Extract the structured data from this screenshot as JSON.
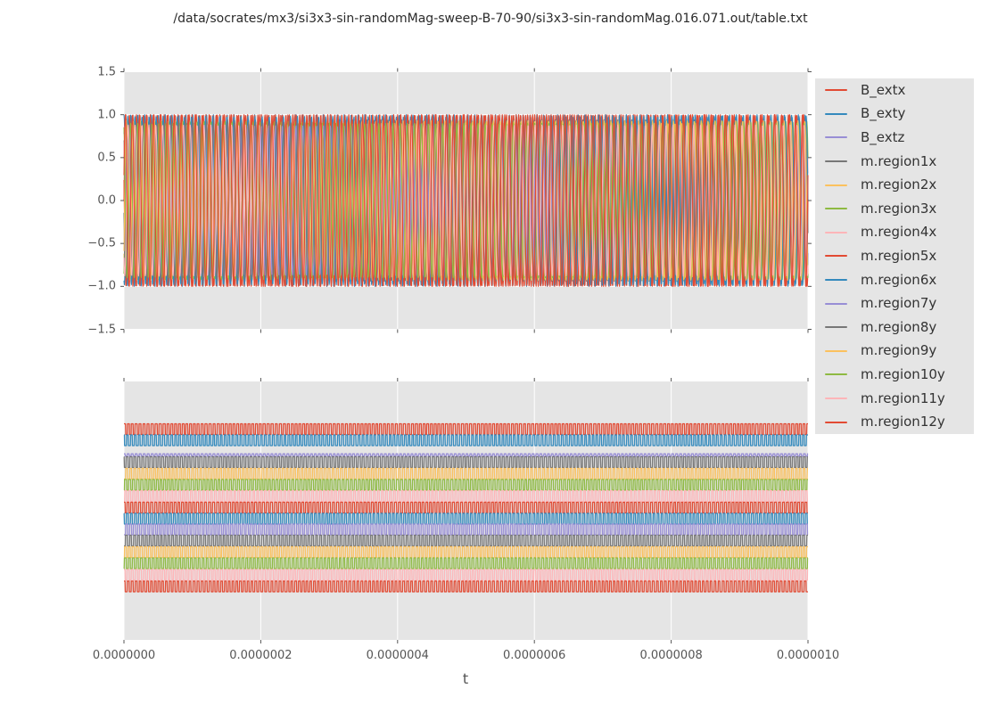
{
  "figure": {
    "title": "/data/socrates/mx3/si3x3-sin-randomMag-sweep-B-70-90/si3x3-sin-randomMag.016.071.out/table.txt",
    "xlabel": "t",
    "background": "#ffffff",
    "axes_background": "#e5e5e5",
    "grid_color": "#ffffff",
    "tick_color": "#555555",
    "tick_label_color": "#555555",
    "legend_text_color": "#333333"
  },
  "axis": {
    "x_tick_labels": [
      "0.0000000",
      "0.0000002",
      "0.0000004",
      "0.0000006",
      "0.0000008",
      "0.0000010"
    ],
    "top_y_tick_labels": [
      "1.5",
      "1.0",
      "0.5",
      "0.0",
      "−0.5",
      "−1.0",
      "−1.5"
    ]
  },
  "chart_data": [
    {
      "type": "line",
      "subplot": "top",
      "xlabel": "t",
      "xlim": [
        0,
        1e-06
      ],
      "ylim": [
        -1.5,
        1.5
      ],
      "x_ticks": [
        0,
        2e-07,
        4e-07,
        6e-07,
        8e-07,
        1e-06
      ],
      "y_ticks": [
        1.5,
        1.0,
        0.5,
        0.0,
        -0.5,
        -1.0,
        -1.5
      ],
      "grid": true,
      "legend_position": "right",
      "description": "15 overlapping high-frequency sinusoids oscillating between -1 and +1 over 1 microsecond (~98 cycles), forming a dense red/blue striped band with multicolor peak fringes",
      "series": [
        {
          "name": "B_extx",
          "color": "#E24A33",
          "waveform": "sine",
          "amplitude": 1.0,
          "freq_cycles": 97.0,
          "phase": 0.0
        },
        {
          "name": "B_exty",
          "color": "#348ABD",
          "waveform": "sine",
          "amplitude": 1.0,
          "freq_cycles": 99.4,
          "phase": 1.57
        },
        {
          "name": "B_extz",
          "color": "#988ED5",
          "waveform": "sine",
          "amplitude": 0.72,
          "freq_cycles": 96.3,
          "phase": 0.8
        },
        {
          "name": "m.region1x",
          "color": "#777777",
          "waveform": "sine",
          "amplitude": 0.94,
          "freq_cycles": 98.2,
          "phase": 2.3
        },
        {
          "name": "m.region2x",
          "color": "#FBC15E",
          "waveform": "sine",
          "amplitude": 0.9,
          "freq_cycles": 100.1,
          "phase": 3.9
        },
        {
          "name": "m.region3x",
          "color": "#8EBA42",
          "waveform": "sine",
          "amplitude": 0.92,
          "freq_cycles": 97.6,
          "phase": 5.1
        },
        {
          "name": "m.region4x",
          "color": "#FFB5B8",
          "waveform": "sine",
          "amplitude": 0.89,
          "freq_cycles": 99.0,
          "phase": 0.6
        },
        {
          "name": "m.region5x",
          "color": "#E24A33",
          "waveform": "sine",
          "amplitude": 1.0,
          "freq_cycles": 98.4,
          "phase": 2.9
        },
        {
          "name": "m.region6x",
          "color": "#348ABD",
          "waveform": "sine",
          "amplitude": 0.98,
          "freq_cycles": 96.8,
          "phase": 4.4
        },
        {
          "name": "m.region7y",
          "color": "#988ED5",
          "waveform": "sine",
          "amplitude": 0.87,
          "freq_cycles": 99.7,
          "phase": 1.1
        },
        {
          "name": "m.region8y",
          "color": "#777777",
          "waveform": "sine",
          "amplitude": 0.91,
          "freq_cycles": 97.2,
          "phase": 3.3
        },
        {
          "name": "m.region9y",
          "color": "#FBC15E",
          "waveform": "sine",
          "amplitude": 0.93,
          "freq_cycles": 98.8,
          "phase": 5.6
        },
        {
          "name": "m.region10y",
          "color": "#8EBA42",
          "waveform": "sine",
          "amplitude": 0.9,
          "freq_cycles": 96.5,
          "phase": 1.9
        },
        {
          "name": "m.region11y",
          "color": "#FFB5B8",
          "waveform": "sine",
          "amplitude": 0.88,
          "freq_cycles": 99.2,
          "phase": 4.0
        },
        {
          "name": "m.region12y",
          "color": "#E24A33",
          "waveform": "sine",
          "amplitude": 1.0,
          "freq_cycles": 98.0,
          "phase": 0.3
        }
      ]
    },
    {
      "type": "line",
      "subplot": "bottom",
      "xlabel": "t",
      "xlim": [
        0,
        1e-06
      ],
      "ylim": [
        0,
        1
      ],
      "x_ticks": [
        0,
        2e-07,
        4e-07,
        6e-07,
        8e-07,
        1e-06
      ],
      "y_ticks": [],
      "grid": true,
      "description": "15 small-amplitude square-wave traces (~176 cycles) stacked at staggered vertical offsets; offsets/amplitudes given as fraction of axes height, third trace (B_extz) nearly flat",
      "series": [
        {
          "name": "B_extx",
          "color": "#E24A33",
          "waveform": "square",
          "offset": 0.8155,
          "amplitude": 0.0207,
          "freq_cycles": 176.3,
          "phase": 0.0,
          "mod_freq": 11,
          "mod_amp": 0.8,
          "mod_phase": 0.3,
          "duty": 0.1
        },
        {
          "name": "B_exty",
          "color": "#348ABD",
          "waveform": "square",
          "offset": 0.7724,
          "amplitude": 0.0207,
          "freq_cycles": 175.1,
          "phase": 1.2,
          "mod_freq": 7,
          "mod_amp": 1.1,
          "mod_phase": 1.1,
          "duty": -0.15
        },
        {
          "name": "B_extz",
          "color": "#988ED5",
          "waveform": "square",
          "offset": 0.7155,
          "amplitude": 0.0045,
          "freq_cycles": 176.0,
          "phase": 0.5,
          "mod_freq": 9,
          "mod_amp": 0.6,
          "mod_phase": 2.0,
          "duty": 0.0
        },
        {
          "name": "m.region1x",
          "color": "#777777",
          "waveform": "square",
          "offset": 0.6879,
          "amplitude": 0.0207,
          "freq_cycles": 176.8,
          "phase": 2.1,
          "mod_freq": 12,
          "mod_amp": 0.7,
          "mod_phase": 0.8,
          "duty": 0.12
        },
        {
          "name": "m.region2x",
          "color": "#FBC15E",
          "waveform": "square",
          "offset": 0.6431,
          "amplitude": 0.0207,
          "freq_cycles": 175.6,
          "phase": 3.3,
          "mod_freq": 10,
          "mod_amp": 0.9,
          "mod_phase": 2.6,
          "duty": -0.1
        },
        {
          "name": "m.region3x",
          "color": "#8EBA42",
          "waveform": "square",
          "offset": 0.6,
          "amplitude": 0.0207,
          "freq_cycles": 176.4,
          "phase": 4.4,
          "mod_freq": 13,
          "mod_amp": 0.8,
          "mod_phase": 1.7,
          "duty": 0.08
        },
        {
          "name": "m.region4x",
          "color": "#FFB5B8",
          "waveform": "square",
          "offset": 0.5569,
          "amplitude": 0.0207,
          "freq_cycles": 175.9,
          "phase": 5.2,
          "mod_freq": 8,
          "mod_amp": 0.7,
          "mod_phase": 3.4,
          "duty": -0.12
        },
        {
          "name": "m.region5x",
          "color": "#E24A33",
          "waveform": "square",
          "offset": 0.5121,
          "amplitude": 0.0207,
          "freq_cycles": 176.6,
          "phase": 0.7,
          "mod_freq": 11,
          "mod_amp": 0.9,
          "mod_phase": 0.5,
          "duty": 0.1
        },
        {
          "name": "m.region6x",
          "color": "#348ABD",
          "waveform": "square",
          "offset": 0.469,
          "amplitude": 0.0207,
          "freq_cycles": 175.3,
          "phase": 1.9,
          "mod_freq": 9,
          "mod_amp": 0.8,
          "mod_phase": 2.2,
          "duty": -0.08
        },
        {
          "name": "m.region7y",
          "color": "#988ED5",
          "waveform": "square",
          "offset": 0.4276,
          "amplitude": 0.0207,
          "freq_cycles": 176.1,
          "phase": 2.8,
          "mod_freq": 12,
          "mod_amp": 0.7,
          "mod_phase": 1.3,
          "duty": 0.1
        },
        {
          "name": "m.region8y",
          "color": "#777777",
          "waveform": "square",
          "offset": 0.3845,
          "amplitude": 0.0207,
          "freq_cycles": 175.7,
          "phase": 3.9,
          "mod_freq": 10,
          "mod_amp": 0.9,
          "mod_phase": 3.0,
          "duty": -0.1
        },
        {
          "name": "m.region9y",
          "color": "#FBC15E",
          "waveform": "square",
          "offset": 0.3397,
          "amplitude": 0.0207,
          "freq_cycles": 176.5,
          "phase": 4.8,
          "mod_freq": 13,
          "mod_amp": 0.8,
          "mod_phase": 0.9,
          "duty": 0.1
        },
        {
          "name": "m.region10y",
          "color": "#8EBA42",
          "waveform": "square",
          "offset": 0.2966,
          "amplitude": 0.0207,
          "freq_cycles": 175.2,
          "phase": 5.6,
          "mod_freq": 8,
          "mod_amp": 0.7,
          "mod_phase": 2.8,
          "duty": -0.1
        },
        {
          "name": "m.region11y",
          "color": "#FFB5B8",
          "waveform": "square",
          "offset": 0.2517,
          "amplitude": 0.0207,
          "freq_cycles": 176.9,
          "phase": 0.4,
          "mod_freq": 11,
          "mod_amp": 0.9,
          "mod_phase": 1.9,
          "duty": 0.1
        },
        {
          "name": "m.region12y",
          "color": "#E24A33",
          "waveform": "square",
          "offset": 0.2069,
          "amplitude": 0.0207,
          "freq_cycles": 175.8,
          "phase": 1.5,
          "mod_freq": 9,
          "mod_amp": 0.8,
          "mod_phase": 3.6,
          "duty": -0.05
        }
      ]
    }
  ]
}
